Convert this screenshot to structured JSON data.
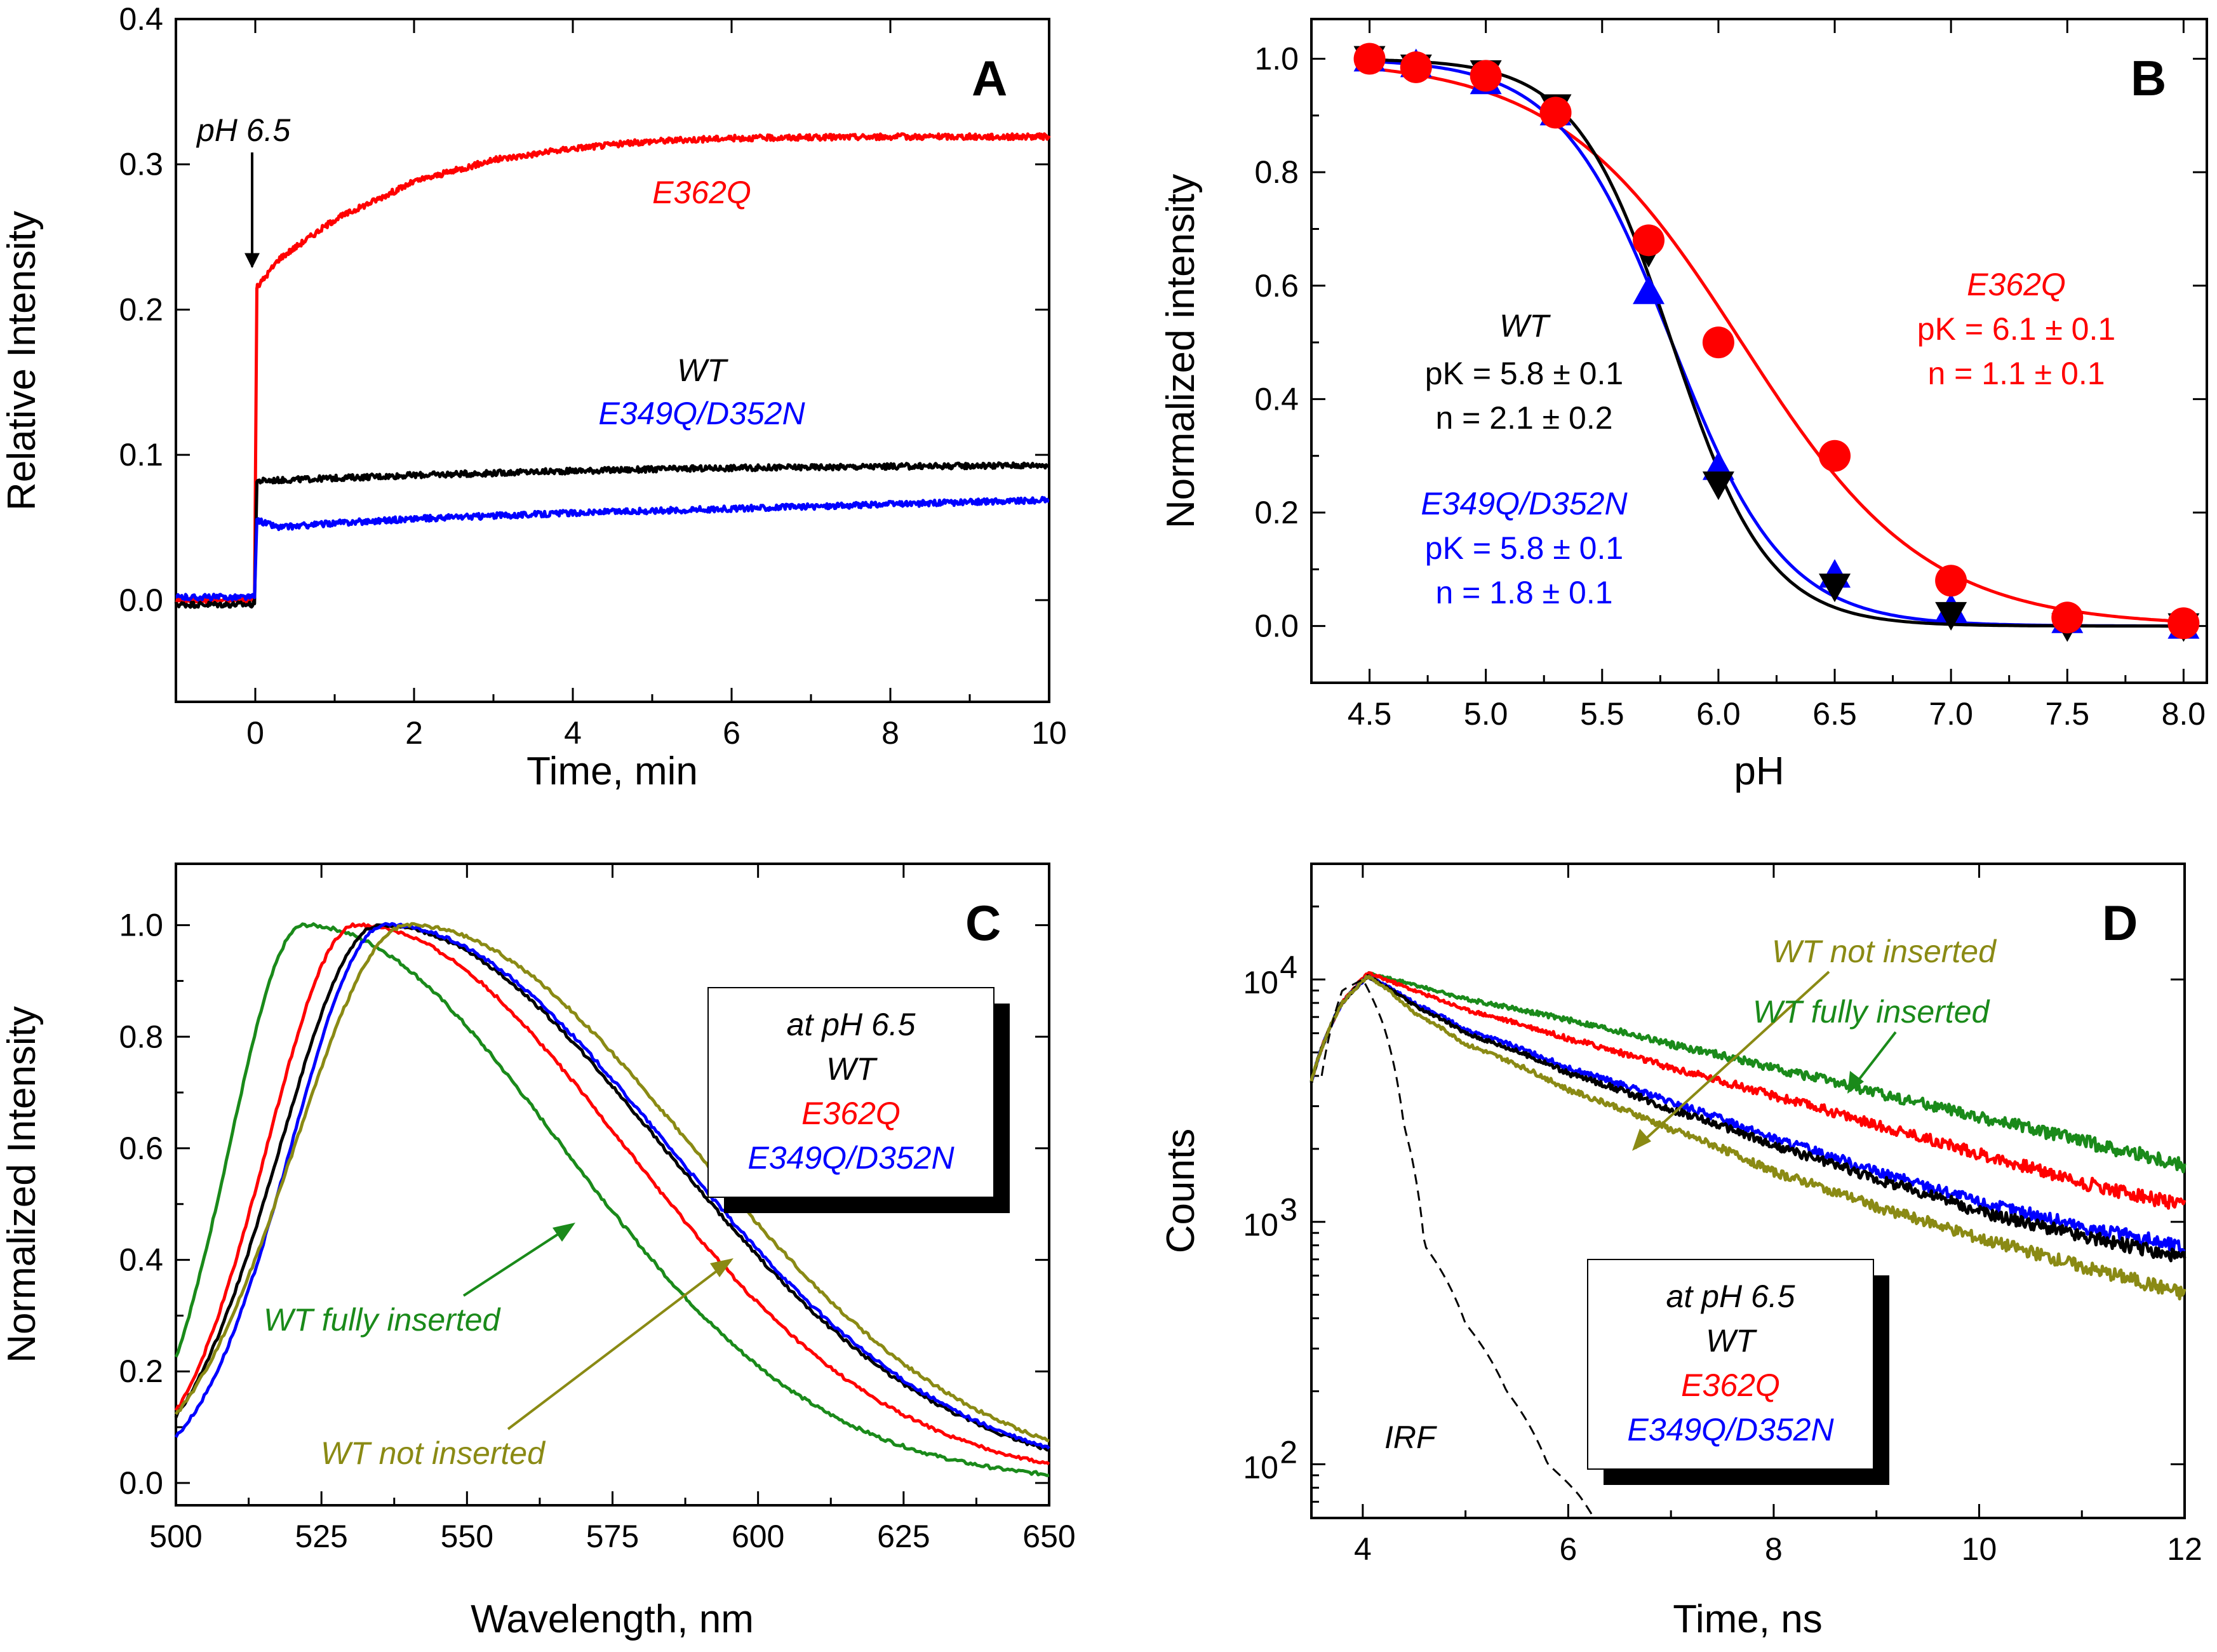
{
  "colors": {
    "wt": "#000000",
    "e362q": "#ff0000",
    "e349q": "#0000ff",
    "fully": "#1a8a1a",
    "notins": "#8a8a14",
    "irf": "#000000"
  },
  "chart_data": [
    {
      "panel": "A",
      "type": "line",
      "xlabel": "Time, min",
      "ylabel": "Relative Intensity",
      "xlim": [
        -1,
        10
      ],
      "ylim": [
        -0.07,
        0.4
      ],
      "xticks": [
        "0",
        "2",
        "4",
        "6",
        "8",
        "10"
      ],
      "yticks": [
        "0.0",
        "0.1",
        "0.2",
        "0.3",
        "0.4"
      ],
      "arrow_label": "pH 6.5",
      "series": [
        {
          "name": "E362Q",
          "key": "e362q",
          "x": [
            -1,
            0,
            0.02,
            0.3,
            1,
            2,
            3,
            4,
            5,
            6,
            8,
            10
          ],
          "y": [
            0.0,
            0.0,
            0.215,
            0.235,
            0.262,
            0.288,
            0.303,
            0.311,
            0.316,
            0.318,
            0.319,
            0.319
          ]
        },
        {
          "name": "WT",
          "key": "wt",
          "x": [
            -1,
            0,
            0.02,
            1,
            2,
            4,
            6,
            8,
            10
          ],
          "y": [
            -0.003,
            -0.003,
            0.082,
            0.084,
            0.086,
            0.089,
            0.091,
            0.092,
            0.093
          ]
        },
        {
          "name": "E349Q/D352N",
          "key": "e349q",
          "x": [
            -1,
            0,
            0.02,
            0.3,
            1,
            2,
            4,
            6,
            8,
            10
          ],
          "y": [
            0.002,
            0.002,
            0.055,
            0.05,
            0.053,
            0.056,
            0.06,
            0.063,
            0.066,
            0.069
          ]
        }
      ]
    },
    {
      "panel": "B",
      "type": "scatter",
      "xlabel": "pH",
      "ylabel": "Normalized intensity",
      "xlim": [
        4.25,
        8.1
      ],
      "ylim": [
        -0.1,
        1.07
      ],
      "xticks": [
        "4.5",
        "5.0",
        "5.5",
        "6.0",
        "6.5",
        "7.0",
        "7.5",
        "8.0"
      ],
      "yticks": [
        "0.0",
        "0.2",
        "0.4",
        "0.6",
        "0.8",
        "1.0"
      ],
      "series": [
        {
          "name": "WT",
          "key": "wt",
          "marker": "triangle-down",
          "pK": 5.8,
          "n": 2.1,
          "x": [
            4.5,
            4.7,
            5.0,
            5.3,
            5.7,
            6.0,
            6.5,
            7.0,
            7.5,
            8.0
          ],
          "y": [
            1.0,
            0.985,
            0.975,
            0.915,
            0.66,
            0.25,
            0.07,
            0.02,
            0.0,
            0.0
          ],
          "fit_label": "WT",
          "pk_label": "pK = 5.8 ± 0.1",
          "n_label": "n = 2.1 ± 0.2"
        },
        {
          "name": "E349Q/D352N",
          "key": "e349q",
          "marker": "triangle-up",
          "pK": 5.8,
          "n": 1.8,
          "x": [
            4.5,
            4.7,
            5.0,
            5.3,
            5.7,
            6.0,
            6.5,
            7.0,
            7.5,
            8.0
          ],
          "y": [
            1.0,
            0.99,
            0.96,
            0.905,
            0.59,
            0.28,
            0.09,
            0.03,
            0.01,
            0.0
          ],
          "fit_label": "E349Q/D352N",
          "pk_label": "pK = 5.8 ± 0.1",
          "n_label": "n = 1.8 ± 0.1"
        },
        {
          "name": "E362Q",
          "key": "e362q",
          "marker": "circle",
          "pK": 6.1,
          "n": 1.1,
          "x": [
            4.5,
            4.7,
            5.0,
            5.3,
            5.7,
            6.0,
            6.5,
            7.0,
            7.5,
            8.0
          ],
          "y": [
            1.0,
            0.985,
            0.97,
            0.905,
            0.68,
            0.5,
            0.3,
            0.08,
            0.015,
            0.005
          ],
          "fit_label": "E362Q",
          "pk_label": "pK = 6.1 ± 0.1",
          "n_label": "n = 1.1 ± 0.1"
        }
      ]
    },
    {
      "panel": "C",
      "type": "line",
      "xlabel": "Wavelength, nm",
      "ylabel": "Normalized Intensity",
      "xlim": [
        500,
        650
      ],
      "ylim": [
        -0.04,
        1.11
      ],
      "xticks": [
        "500",
        "525",
        "550",
        "575",
        "600",
        "625",
        "650"
      ],
      "yticks": [
        "0.0",
        "0.2",
        "0.4",
        "0.6",
        "0.8",
        "1.0"
      ],
      "legend_title": "at pH 6.5",
      "legend": [
        "WT",
        "E362Q",
        "E349Q/D352N"
      ],
      "fully_label": "WT fully inserted",
      "notins_label": "WT not inserted",
      "series": [
        {
          "name": "WT fully inserted",
          "key": "fully",
          "peak": 522,
          "wl": 15,
          "wr": 52
        },
        {
          "name": "E362Q",
          "key": "e362q",
          "peak": 531,
          "wl": 18,
          "wr": 54
        },
        {
          "name": "WT",
          "key": "wt",
          "peak": 535,
          "wl": 20,
          "wr": 57
        },
        {
          "name": "E349Q/D352N",
          "key": "e349q",
          "peak": 536,
          "wl": 19,
          "wr": 57
        },
        {
          "name": "WT not inserted",
          "key": "notins",
          "peak": 540,
          "wl": 23,
          "wr": 57
        }
      ]
    },
    {
      "panel": "D",
      "type": "line",
      "scale": "log",
      "xlabel": "Time, ns",
      "ylabel": "Counts",
      "xlim": [
        3.5,
        12
      ],
      "ylim": [
        60,
        30000
      ],
      "xticks": [
        "4",
        "6",
        "8",
        "10",
        "12"
      ],
      "yticks": [
        {
          "base": "10",
          "exp": "2"
        },
        {
          "base": "10",
          "exp": "3"
        },
        {
          "base": "10",
          "exp": "4"
        }
      ],
      "legend_title": "at pH 6.5",
      "legend": [
        "WT",
        "E362Q",
        "E349Q/D352N"
      ],
      "irf_label": "IRF",
      "notins_label": "WT not inserted",
      "fully_label": "WT fully inserted",
      "series": [
        {
          "name": "WT fully inserted",
          "key": "fully",
          "x": [
            3.5,
            3.8,
            4.05,
            4.5,
            5,
            6,
            7,
            8,
            9,
            10,
            11,
            12
          ],
          "y": [
            3800,
            8000,
            10600,
            9500,
            8300,
            6800,
            5400,
            4300,
            3400,
            2700,
            2150,
            1700
          ]
        },
        {
          "name": "E362Q",
          "key": "e362q",
          "x": [
            3.5,
            3.8,
            4.05,
            4.5,
            5,
            6,
            7,
            8,
            9,
            10,
            11,
            12
          ],
          "y": [
            3800,
            8000,
            10600,
            9000,
            7500,
            5700,
            4300,
            3300,
            2500,
            1900,
            1450,
            1150
          ]
        },
        {
          "name": "E349Q/D352N",
          "key": "e349q",
          "x": [
            3.5,
            3.8,
            4.05,
            4.5,
            5,
            6,
            7,
            8,
            9,
            10,
            11,
            12
          ],
          "y": [
            3800,
            8000,
            10300,
            8000,
            6200,
            4300,
            3100,
            2200,
            1600,
            1200,
            950,
            780
          ]
        },
        {
          "name": "WT",
          "key": "wt",
          "x": [
            3.5,
            3.8,
            4.05,
            4.5,
            5,
            6,
            7,
            8,
            9,
            10,
            11,
            12
          ],
          "y": [
            3800,
            8000,
            10300,
            7800,
            6000,
            4100,
            2900,
            2050,
            1500,
            1100,
            870,
            700
          ]
        },
        {
          "name": "WT not inserted",
          "key": "notins",
          "x": [
            3.5,
            3.8,
            4.05,
            4.5,
            5,
            6,
            7,
            8,
            9,
            10,
            11,
            12
          ],
          "y": [
            3800,
            8000,
            10300,
            7300,
            5400,
            3500,
            2400,
            1600,
            1150,
            850,
            650,
            500
          ]
        },
        {
          "name": "IRF",
          "key": "irf",
          "dashed": true,
          "x": [
            3.6,
            3.8,
            4.0,
            4.2,
            4.4,
            4.6,
            5.0,
            5.4,
            5.8,
            6.1,
            6.25
          ],
          "y": [
            4000,
            9000,
            10000,
            6500,
            2500,
            800,
            380,
            200,
            100,
            75,
            60
          ]
        }
      ]
    }
  ]
}
